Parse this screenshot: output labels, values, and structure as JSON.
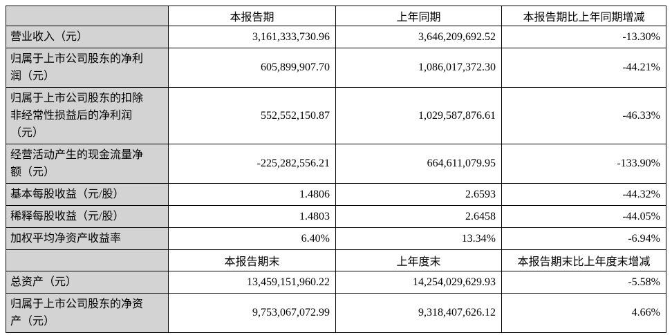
{
  "colors": {
    "shaded_cell": "#d3d3d3",
    "border": "#000000",
    "text": "#000000",
    "background": "#ffffff"
  },
  "table": {
    "section_income": {
      "header": {
        "label": "",
        "current": "本报告期",
        "prior": "上年同期",
        "change": "本报告期比上年同期增减"
      },
      "rows": [
        {
          "label": "营业收入（元）",
          "current": "3,161,333,730.96",
          "prior": "3,646,209,692.52",
          "change": "-13.30%"
        },
        {
          "label": "归属于上市公司股东的净利润（元）",
          "current": "605,899,907.70",
          "prior": "1,086,017,372.30",
          "change": "-44.21%"
        },
        {
          "label": "归属于上市公司股东的扣除非经常性损益后的净利润（元）",
          "current": "552,552,150.87",
          "prior": "1,029,587,876.61",
          "change": "-46.33%"
        },
        {
          "label": "经营活动产生的现金流量净额（元）",
          "current": "-225,282,556.21",
          "prior": "664,611,079.95",
          "change": "-133.90%"
        },
        {
          "label": "基本每股收益（元/股）",
          "current": "1.4806",
          "prior": "2.6593",
          "change": "-44.32%"
        },
        {
          "label": "稀释每股收益（元/股）",
          "current": "1.4803",
          "prior": "2.6458",
          "change": "-44.05%"
        },
        {
          "label": "加权平均净资产收益率",
          "current": "6.40%",
          "prior": "13.34%",
          "change": "-6.94%"
        }
      ]
    },
    "section_assets": {
      "header": {
        "label": "",
        "current": "本报告期末",
        "prior": "上年度末",
        "change": "本报告期末比上年度末增减"
      },
      "rows": [
        {
          "label": "总资产（元）",
          "current": "13,459,151,960.22",
          "prior": "14,254,029,629.93",
          "change": "-5.58%"
        },
        {
          "label": "归属于上市公司股东的净资产（元）",
          "current": "9,753,067,072.99",
          "prior": "9,318,407,626.12",
          "change": "4.66%"
        }
      ]
    }
  }
}
